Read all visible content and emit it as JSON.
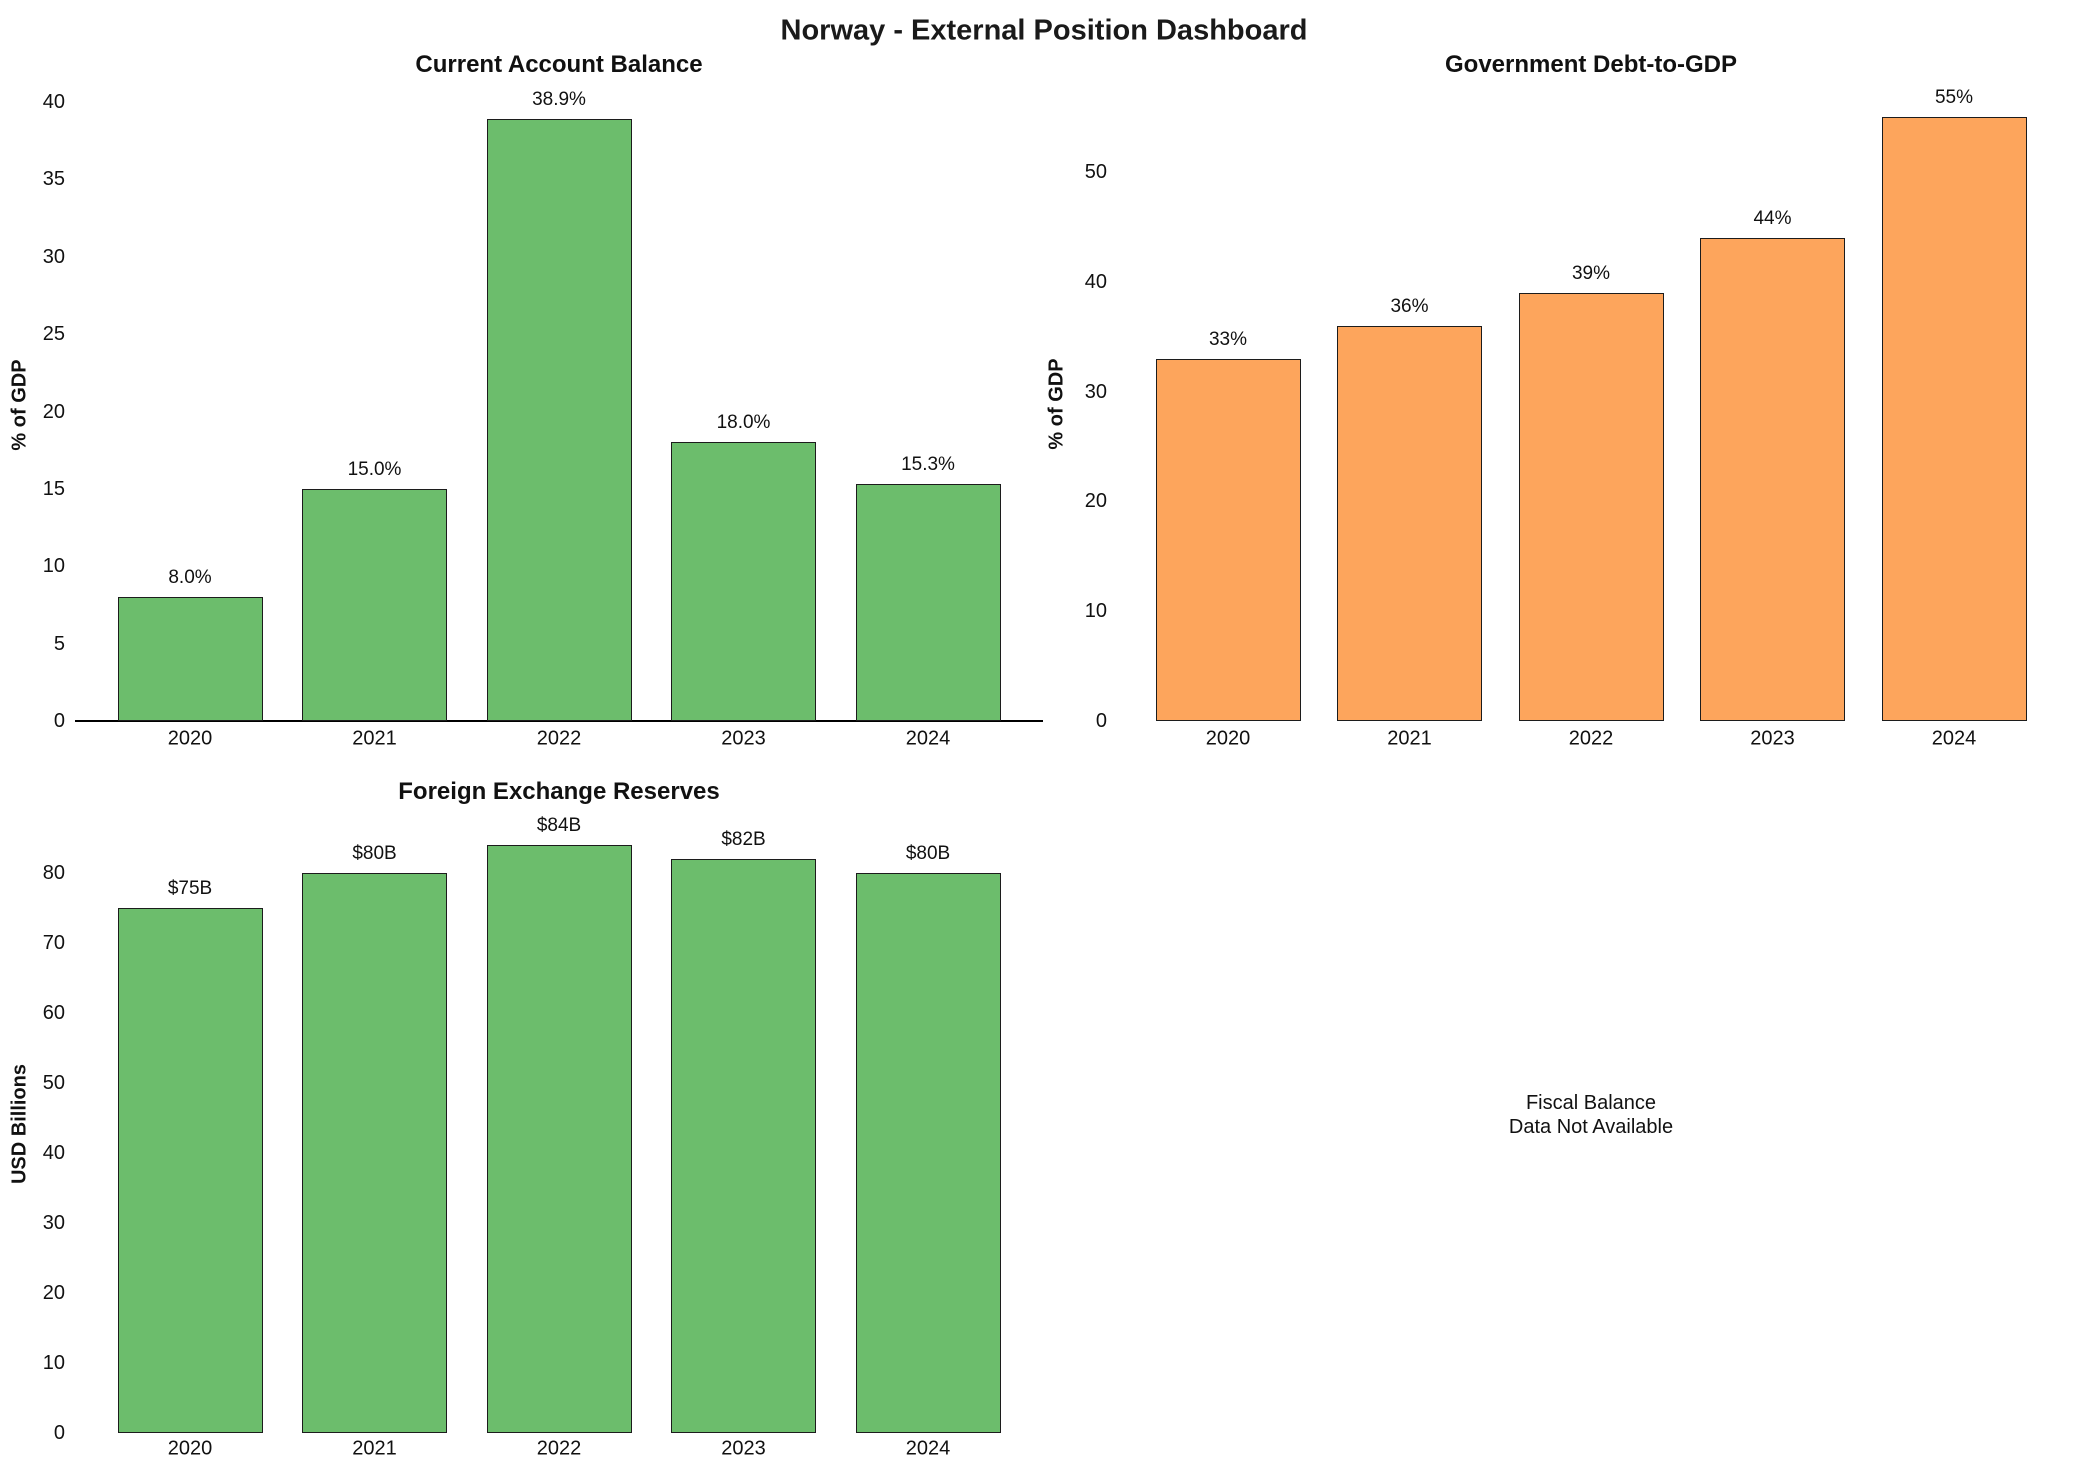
{
  "header": {
    "title": "Norway - External Position Dashboard"
  },
  "chart_data": [
    {
      "id": "current-account",
      "type": "bar",
      "title": "Current Account Balance",
      "ylabel": "% of GDP",
      "categories": [
        "2020",
        "2021",
        "2022",
        "2023",
        "2024"
      ],
      "values": [
        8.0,
        15.0,
        38.9,
        18.0,
        15.3
      ],
      "value_labels": [
        "8.0%",
        "15.0%",
        "38.9%",
        "18.0%",
        "15.3%"
      ],
      "yticks": [
        0,
        5,
        10,
        15,
        20,
        25,
        30,
        35,
        40
      ],
      "ylim": [
        0,
        40.8
      ],
      "bar_color": "#6cbd6c",
      "zero_line": true,
      "grid": false
    },
    {
      "id": "govt-debt",
      "type": "bar",
      "title": "Government Debt-to-GDP",
      "ylabel": "% of GDP",
      "categories": [
        "2020",
        "2021",
        "2022",
        "2023",
        "2024"
      ],
      "values": [
        33,
        36,
        39,
        44,
        55
      ],
      "value_labels": [
        "33%",
        "36%",
        "39%",
        "44%",
        "55%"
      ],
      "yticks": [
        0,
        10,
        20,
        30,
        40,
        50
      ],
      "ylim": [
        0,
        57.8
      ],
      "bar_color": "#fda55c",
      "zero_line": false,
      "grid": false
    },
    {
      "id": "fx-reserves",
      "type": "bar",
      "title": "Foreign Exchange Reserves",
      "ylabel": "USD Billions",
      "categories": [
        "2020",
        "2021",
        "2022",
        "2023",
        "2024"
      ],
      "values": [
        75,
        80,
        84,
        82,
        80
      ],
      "value_labels": [
        "$75B",
        "$80B",
        "$84B",
        "$82B",
        "$80B"
      ],
      "yticks": [
        0,
        10,
        20,
        30,
        40,
        50,
        60,
        70,
        80
      ],
      "ylim": [
        0,
        88.2
      ],
      "bar_color": "#6cbd6c",
      "zero_line": false,
      "grid": false
    },
    {
      "id": "fiscal-balance",
      "type": "empty",
      "message": "Fiscal Balance\nData Not Available"
    }
  ]
}
